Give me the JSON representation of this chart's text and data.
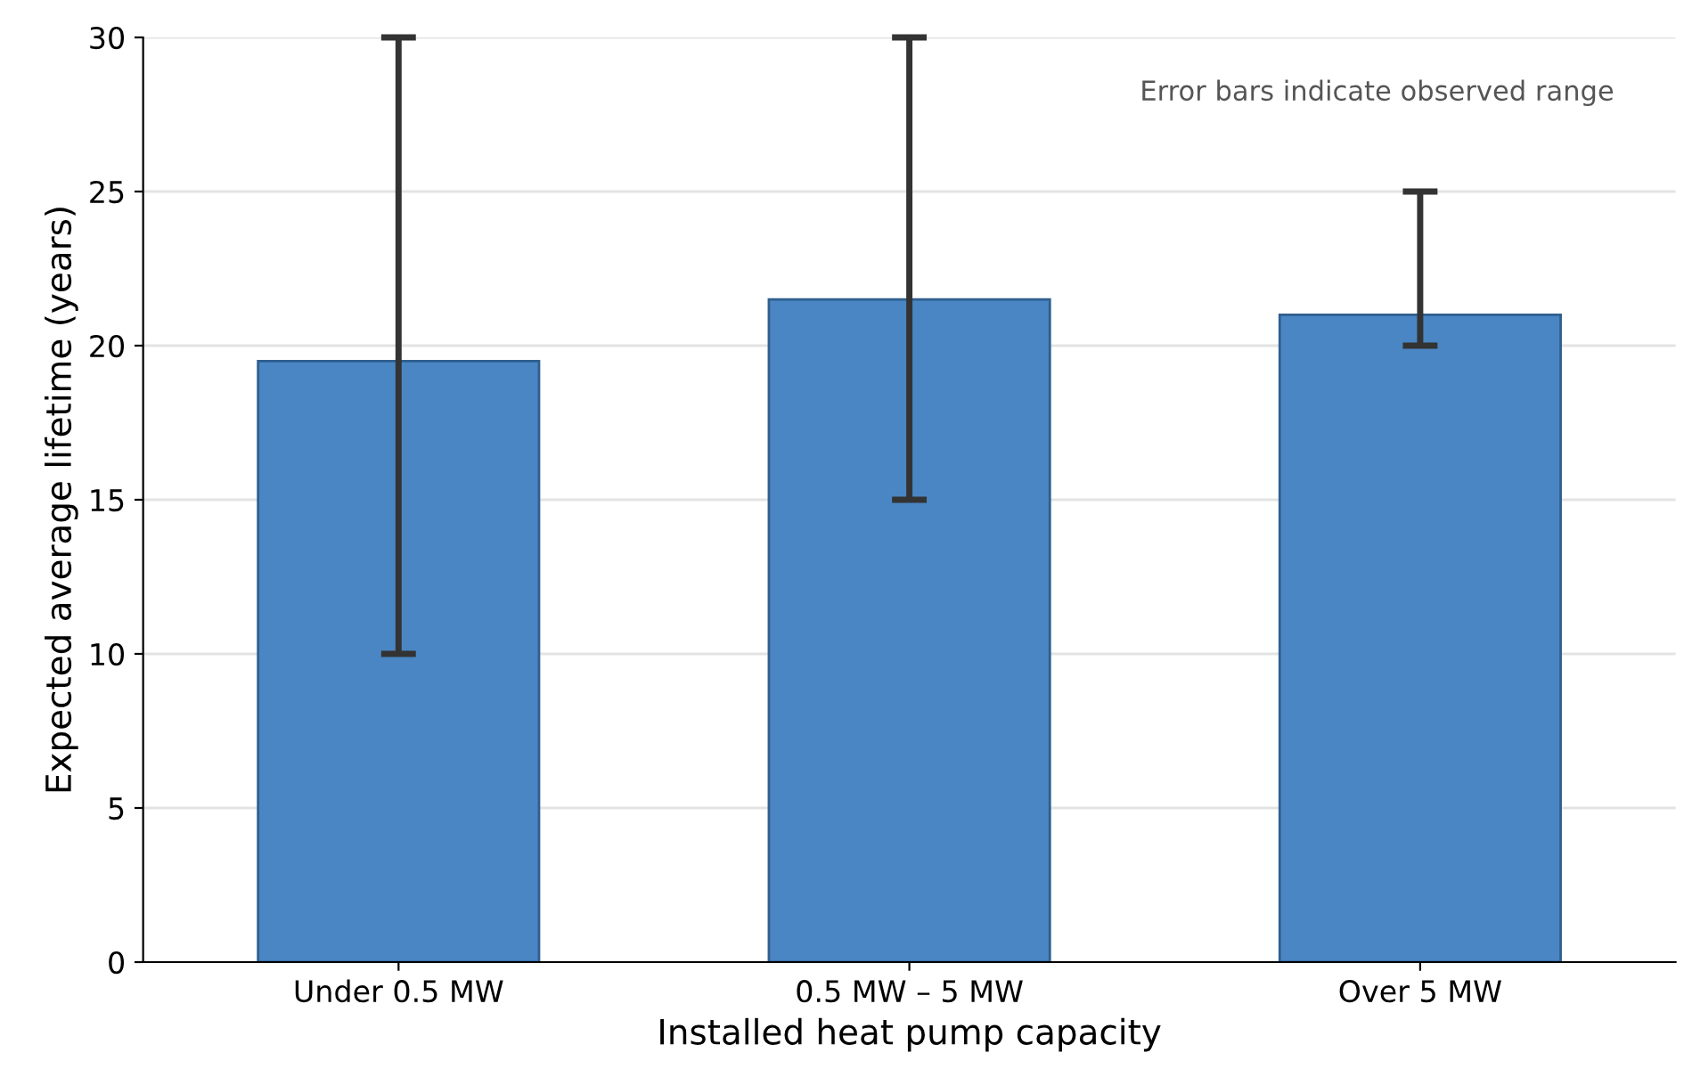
{
  "chart_data": {
    "type": "bar",
    "categories": [
      "Under 0.5 MW",
      "0.5 MW – 5 MW",
      "Over 5 MW"
    ],
    "values": [
      19.5,
      21.5,
      21.0
    ],
    "errors": [
      [
        10,
        30
      ],
      [
        15,
        30
      ],
      [
        20,
        25
      ]
    ],
    "color": "#4a86c4",
    "xlabel": "Installed heat pump capacity",
    "ylabel": "Expected average lifetime (years)",
    "ylim": [
      0,
      30
    ],
    "yticks": [
      0,
      5,
      10,
      15,
      20,
      25,
      30
    ],
    "grid": "y",
    "annotations": [
      "Error bars indicate observed range"
    ]
  }
}
